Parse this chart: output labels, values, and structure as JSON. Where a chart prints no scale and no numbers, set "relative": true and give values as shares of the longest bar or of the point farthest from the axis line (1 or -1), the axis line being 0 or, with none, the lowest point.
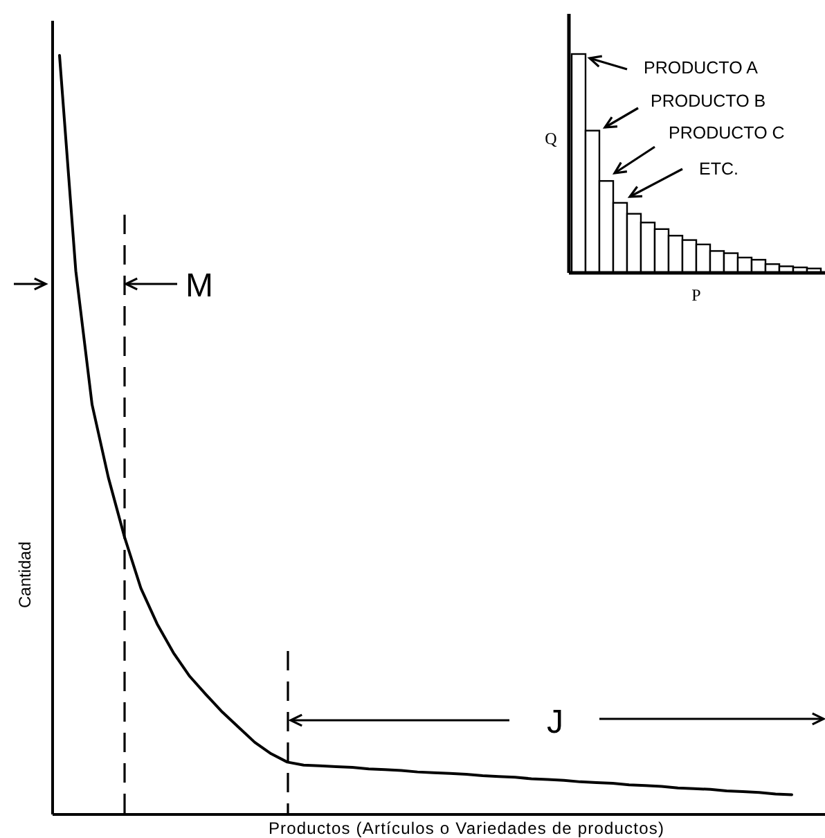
{
  "chart_data": [
    {
      "type": "line",
      "relative": true,
      "xlabel": "Productos (Artículos o Variedades de productos)",
      "ylabel": "Cantidad",
      "categories": [
        null,
        null,
        null,
        null,
        null,
        null,
        null,
        null,
        null,
        null,
        null,
        null,
        null,
        null,
        null,
        null,
        null,
        null,
        null,
        null,
        null,
        null,
        null,
        null,
        null,
        null,
        null,
        null,
        null,
        null,
        null,
        null,
        null,
        null,
        null,
        null,
        null,
        null,
        null,
        null,
        null,
        null,
        null,
        null,
        null,
        null
      ],
      "series": [
        {
          "color": "#000000",
          "values": [
            1,
            0.716,
            0.54,
            0.444,
            0.365,
            0.298,
            0.251,
            0.213,
            0.182,
            0.158,
            0.135,
            0.115,
            0.095,
            0.08,
            0.069,
            0.065,
            0.064,
            0.063,
            0.062,
            0.06,
            0.059,
            0.058,
            0.056,
            0.055,
            0.054,
            0.053,
            0.051,
            0.05,
            0.049,
            0.047,
            0.046,
            0.045,
            0.043,
            0.042,
            0.041,
            0.039,
            0.038,
            0.037,
            0.035,
            0.034,
            0.033,
            0.031,
            0.03,
            0.029,
            0.027,
            0.026
          ]
        }
      ],
      "annotations": [
        "M",
        "J"
      ]
    },
    {
      "type": "bar",
      "relative": true,
      "xlabel": "P",
      "ylabel": "Q",
      "categories": [
        null,
        null,
        null,
        null,
        null,
        null,
        null,
        null,
        null,
        null,
        null,
        null,
        null,
        null,
        null,
        null,
        null,
        null
      ],
      "values": [
        1,
        0.65,
        0.42,
        0.32,
        0.27,
        0.23,
        0.2,
        0.17,
        0.15,
        0.13,
        0.1,
        0.09,
        0.07,
        0.06,
        0.04,
        0.03,
        0.025,
        0.02
      ],
      "color": "#ffffff",
      "annotations": [
        "PRODUCTO A",
        "PRODUCTO B",
        "PRODUCTO C",
        "ETC."
      ]
    }
  ]
}
